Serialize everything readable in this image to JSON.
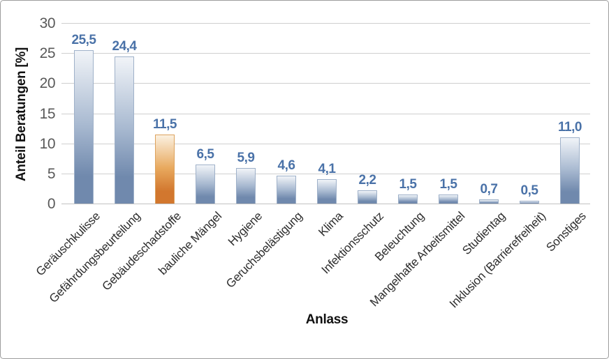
{
  "chart_data": {
    "type": "bar",
    "title": "",
    "xlabel": "Anlass",
    "ylabel": "Anteil Beratungen [%]",
    "ylim": [
      0,
      30
    ],
    "yticks": [
      0,
      5,
      10,
      15,
      20,
      25,
      30
    ],
    "grid": true,
    "legend": "none",
    "decimal_separator": ",",
    "categories": [
      "Geräuschkulisse",
      "Gefährdungsbeurteilung",
      "Gebäudeschadstoffe",
      "bauliche Mängel",
      "Hygiene",
      "Geruchsbelästigung",
      "Klima",
      "Infektionsschutz",
      "Beleuchtung",
      "Mangelhafte Arbeitsmittel",
      "Studientag",
      "Inklusion (Barrierefreiheit)",
      "Sonstiges"
    ],
    "values": [
      25.5,
      24.4,
      11.5,
      6.5,
      5.9,
      4.6,
      4.1,
      2.2,
      1.5,
      1.5,
      0.7,
      0.5,
      11.0
    ],
    "value_labels": [
      "25,5",
      "24,4",
      "11,5",
      "6,5",
      "5,9",
      "4,6",
      "4,1",
      "2,2",
      "1,5",
      "1,5",
      "0,7",
      "0,5",
      "11,0"
    ],
    "highlight_index": 2,
    "colors": {
      "bar_blue_top": "#f1f4f8",
      "bar_blue_mid": "#a9bad1",
      "bar_blue_bottom": "#7089ad",
      "bar_blue_border": "#9fb1c9",
      "bar_orange_top": "#fbf1e1",
      "bar_orange_mid": "#e8a95e",
      "bar_orange_bottom": "#d2772e",
      "bar_orange_border": "#dda25d",
      "value_label": "#4a72a8",
      "gridline": "#cfcfcf",
      "axis_line": "#c2c2c2",
      "tick_label": "#595959"
    }
  }
}
